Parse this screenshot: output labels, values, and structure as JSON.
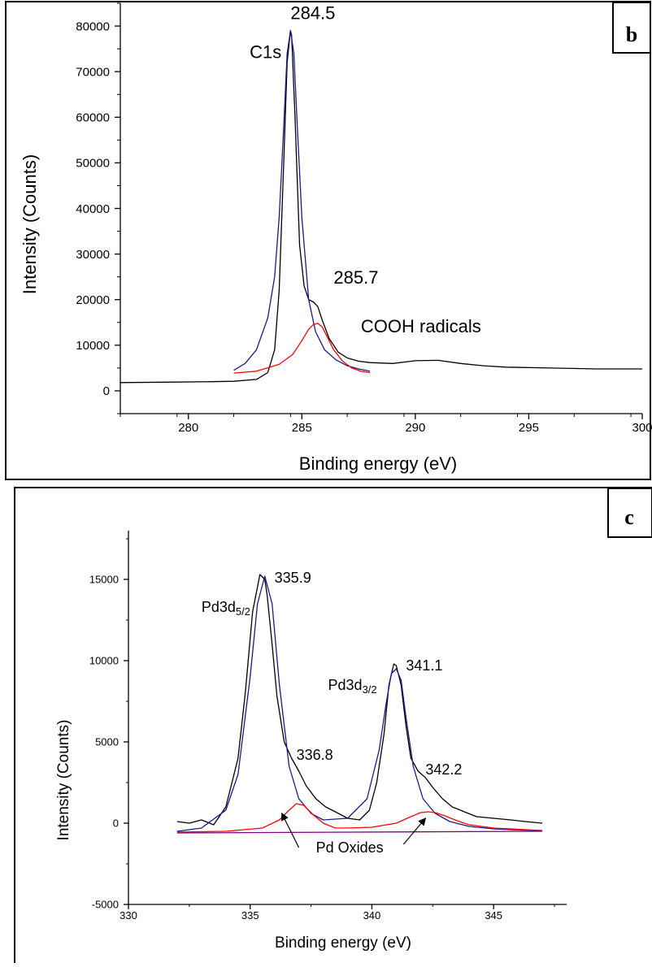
{
  "charts": [
    {
      "panel_label": "b",
      "chart_data": {
        "type": "line",
        "xlabel": "Binding energy (eV)",
        "ylabel": "Intensity (Counts)",
        "xlim": [
          277,
          300
        ],
        "ylim": [
          -5000,
          85000
        ],
        "xticks": [
          280,
          285,
          290,
          295,
          300
        ],
        "yticks": [
          0,
          10000,
          20000,
          30000,
          40000,
          50000,
          60000,
          70000,
          80000
        ],
        "grid": false,
        "series": [
          {
            "role": "measured",
            "color": "#000000",
            "x": [
              277,
              279,
              281,
              282,
              283,
              283.5,
              283.8,
              284.0,
              284.2,
              284.35,
              284.5,
              284.55,
              284.7,
              284.9,
              285.1,
              285.3,
              285.5,
              285.7,
              285.9,
              286.2,
              286.6,
              287.0,
              287.5,
              288.0,
              289.0,
              290.0,
              291.0,
              292.0,
              293.0,
              294.0,
              296.0,
              298.0,
              300.0
            ],
            "y": [
              1800,
              1900,
              2000,
              2100,
              2500,
              4000,
              9000,
              22000,
              50000,
              72000,
              79000,
              78000,
              60000,
              32000,
              23000,
              20000,
              19500,
              18500,
              15500,
              11500,
              8500,
              7200,
              6500,
              6200,
              6000,
              6600,
              6700,
              6000,
              5500,
              5200,
              5000,
              4800,
              4800
            ]
          },
          {
            "role": "fit",
            "color": "#1a1a8c",
            "x": [
              282,
              282.5,
              283,
              283.5,
              283.8,
              284.0,
              284.2,
              284.35,
              284.5,
              284.65,
              284.8,
              285.0,
              285.3,
              285.6,
              286.0,
              286.5,
              287.0,
              287.5,
              288.0
            ],
            "y": [
              4500,
              6000,
              9000,
              16000,
              25000,
              38000,
              58000,
              74000,
              79000,
              74000,
              58000,
              38000,
              20000,
              13000,
              9000,
              6800,
              5500,
              4800,
              4300
            ]
          },
          {
            "role": "fit",
            "color": "#ff0000",
            "x": [
              282,
              283,
              284,
              284.6,
              285.0,
              285.3,
              285.5,
              285.7,
              285.9,
              286.1,
              286.4,
              286.8,
              287.2,
              287.6,
              288.0
            ],
            "y": [
              3900,
              4300,
              5800,
              8000,
              11000,
              13500,
              14500,
              14800,
              14000,
              12000,
              9000,
              6500,
              5000,
              4300,
              4000
            ]
          }
        ],
        "annotations": [
          {
            "text": "284.5",
            "x": 284.5,
            "y": 81500
          },
          {
            "text": "C1s",
            "x": 282.7,
            "y": 73000
          },
          {
            "text": "285.7",
            "x": 286.4,
            "y": 23500
          },
          {
            "text": "COOH radicals",
            "x": 287.6,
            "y": 12800
          }
        ]
      }
    },
    {
      "panel_label": "c",
      "chart_data": {
        "type": "line",
        "xlabel": "Binding energy (eV)",
        "ylabel": "Intensity (Counts)",
        "xlim": [
          330,
          348
        ],
        "ylim": [
          -5000,
          18000
        ],
        "xticks": [
          330,
          335,
          340,
          345
        ],
        "yticks": [
          -5000,
          0,
          5000,
          10000,
          15000
        ],
        "grid": false,
        "series": [
          {
            "role": "measured",
            "color": "#000000",
            "x": [
              332,
              332.5,
              333,
              333.5,
              334.0,
              334.5,
              334.8,
              335.1,
              335.4,
              335.6,
              335.7,
              335.9,
              336.1,
              336.4,
              336.7,
              337.0,
              337.3,
              337.7,
              338.1,
              338.5,
              339.0,
              339.5,
              339.9,
              340.2,
              340.5,
              340.7,
              340.9,
              341.0,
              341.2,
              341.4,
              341.6,
              341.9,
              342.2,
              342.5,
              342.9,
              343.3,
              343.8,
              344.3,
              345.0,
              345.7,
              346.3,
              347.0
            ],
            "y": [
              100,
              0,
              200,
              -100,
              1000,
              4000,
              8000,
              13000,
              15300,
              15000,
              14000,
              11000,
              7800,
              5000,
              4000,
              3200,
              2300,
              1500,
              1000,
              700,
              300,
              200,
              800,
              2500,
              5500,
              8500,
              9800,
              9700,
              8500,
              6000,
              4000,
              3200,
              2800,
              2200,
              1500,
              1000,
              700,
              400,
              300,
              200,
              100,
              0
            ]
          },
          {
            "role": "fit",
            "color": "#1a1a8c",
            "x": [
              332,
              333,
              334,
              334.5,
              335.0,
              335.3,
              335.6,
              335.9,
              336.2,
              336.6,
              337.0,
              337.5,
              338.0,
              339.0,
              339.8,
              340.3,
              340.6,
              340.8,
              341.0,
              341.2,
              341.4,
              341.7,
              342.1,
              342.6,
              343.2,
              344.0,
              345.0,
              346.0,
              347.0
            ],
            "y": [
              -500,
              -300,
              800,
              3000,
              9000,
              13500,
              15200,
              13500,
              8500,
              3500,
              1500,
              600,
              200,
              300,
              1500,
              4500,
              7500,
              9200,
              9500,
              8800,
              6500,
              3500,
              1500,
              600,
              100,
              -200,
              -350,
              -420,
              -460
            ]
          },
          {
            "role": "fit",
            "color": "#ff0000",
            "x": [
              332,
              334,
              335.5,
              336.2,
              336.6,
              336.9,
              337.2,
              337.6,
              338.0,
              338.5,
              339.0,
              340.0,
              341.0,
              341.6,
              342.0,
              342.3,
              342.6,
              343.0,
              343.5,
              344.0,
              345.0,
              347.0
            ],
            "y": [
              -550,
              -500,
              -300,
              200,
              800,
              1200,
              1100,
              500,
              0,
              -300,
              -300,
              -250,
              0,
              400,
              650,
              700,
              650,
              450,
              150,
              -100,
              -300,
              -450
            ]
          },
          {
            "role": "baseline",
            "color": "#800080",
            "x": [
              332,
              347
            ],
            "y": [
              -600,
              -500
            ]
          }
        ],
        "annotations": [
          {
            "text": "335.9",
            "x": 336.0,
            "y": 14800
          },
          {
            "text": "Pd3d5/2",
            "x": 333.0,
            "y": 13000
          },
          {
            "text": "341.1",
            "x": 341.4,
            "y": 9400
          },
          {
            "text": "Pd3d3/2",
            "x": 338.2,
            "y": 8200
          },
          {
            "text": "336.8",
            "x": 336.9,
            "y": 3900
          },
          {
            "text": "342.2",
            "x": 342.2,
            "y": 3000
          },
          {
            "text": "Pd Oxides",
            "x": 337.7,
            "y": -1800
          }
        ]
      }
    }
  ]
}
